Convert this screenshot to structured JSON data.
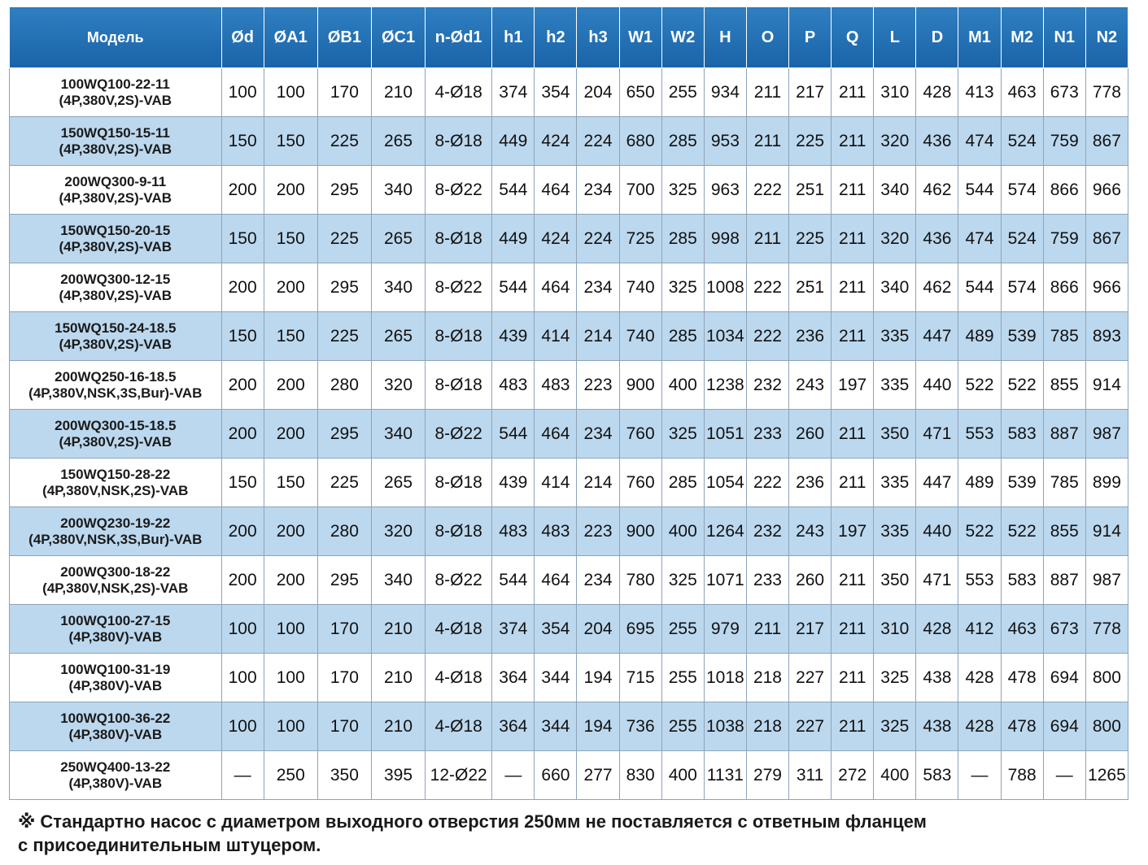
{
  "table": {
    "headers": [
      "Модель",
      "Ød",
      "ØA1",
      "ØB1",
      "ØC1",
      "n-Ød1",
      "h1",
      "h2",
      "h3",
      "W1",
      "W2",
      "H",
      "O",
      "P",
      "Q",
      "L",
      "D",
      "M1",
      "M2",
      "N1",
      "N2"
    ],
    "rows": [
      {
        "model": [
          "100WQ100-22-11",
          "(4P,380V,2S)-VAB"
        ],
        "values": [
          "100",
          "100",
          "170",
          "210",
          "4-Ø18",
          "374",
          "354",
          "204",
          "650",
          "255",
          "934",
          "211",
          "217",
          "211",
          "310",
          "428",
          "413",
          "463",
          "673",
          "778"
        ]
      },
      {
        "model": [
          "150WQ150-15-11",
          "(4P,380V,2S)-VAB"
        ],
        "values": [
          "150",
          "150",
          "225",
          "265",
          "8-Ø18",
          "449",
          "424",
          "224",
          "680",
          "285",
          "953",
          "211",
          "225",
          "211",
          "320",
          "436",
          "474",
          "524",
          "759",
          "867"
        ]
      },
      {
        "model": [
          "200WQ300-9-11",
          "(4P,380V,2S)-VAB"
        ],
        "values": [
          "200",
          "200",
          "295",
          "340",
          "8-Ø22",
          "544",
          "464",
          "234",
          "700",
          "325",
          "963",
          "222",
          "251",
          "211",
          "340",
          "462",
          "544",
          "574",
          "866",
          "966"
        ]
      },
      {
        "model": [
          "150WQ150-20-15",
          "(4P,380V,2S)-VAB"
        ],
        "values": [
          "150",
          "150",
          "225",
          "265",
          "8-Ø18",
          "449",
          "424",
          "224",
          "725",
          "285",
          "998",
          "211",
          "225",
          "211",
          "320",
          "436",
          "474",
          "524",
          "759",
          "867"
        ]
      },
      {
        "model": [
          "200WQ300-12-15",
          "(4P,380V,2S)-VAB"
        ],
        "values": [
          "200",
          "200",
          "295",
          "340",
          "8-Ø22",
          "544",
          "464",
          "234",
          "740",
          "325",
          "1008",
          "222",
          "251",
          "211",
          "340",
          "462",
          "544",
          "574",
          "866",
          "966"
        ]
      },
      {
        "model": [
          "150WQ150-24-18.5",
          "(4P,380V,2S)-VAB"
        ],
        "values": [
          "150",
          "150",
          "225",
          "265",
          "8-Ø18",
          "439",
          "414",
          "214",
          "740",
          "285",
          "1034",
          "222",
          "236",
          "211",
          "335",
          "447",
          "489",
          "539",
          "785",
          "893"
        ]
      },
      {
        "model": [
          "200WQ250-16-18.5",
          "(4P,380V,NSK,3S,Bur)-VAB"
        ],
        "values": [
          "200",
          "200",
          "280",
          "320",
          "8-Ø18",
          "483",
          "483",
          "223",
          "900",
          "400",
          "1238",
          "232",
          "243",
          "197",
          "335",
          "440",
          "522",
          "522",
          "855",
          "914"
        ]
      },
      {
        "model": [
          "200WQ300-15-18.5",
          "(4P,380V,2S)-VAB"
        ],
        "values": [
          "200",
          "200",
          "295",
          "340",
          "8-Ø22",
          "544",
          "464",
          "234",
          "760",
          "325",
          "1051",
          "233",
          "260",
          "211",
          "350",
          "471",
          "553",
          "583",
          "887",
          "987"
        ]
      },
      {
        "model": [
          "150WQ150-28-22",
          "(4P,380V,NSK,2S)-VAB"
        ],
        "values": [
          "150",
          "150",
          "225",
          "265",
          "8-Ø18",
          "439",
          "414",
          "214",
          "760",
          "285",
          "1054",
          "222",
          "236",
          "211",
          "335",
          "447",
          "489",
          "539",
          "785",
          "899"
        ]
      },
      {
        "model": [
          "200WQ230-19-22",
          "(4P,380V,NSK,3S,Bur)-VAB"
        ],
        "values": [
          "200",
          "200",
          "280",
          "320",
          "8-Ø18",
          "483",
          "483",
          "223",
          "900",
          "400",
          "1264",
          "232",
          "243",
          "197",
          "335",
          "440",
          "522",
          "522",
          "855",
          "914"
        ]
      },
      {
        "model": [
          "200WQ300-18-22",
          "(4P,380V,NSK,2S)-VAB"
        ],
        "values": [
          "200",
          "200",
          "295",
          "340",
          "8-Ø22",
          "544",
          "464",
          "234",
          "780",
          "325",
          "1071",
          "233",
          "260",
          "211",
          "350",
          "471",
          "553",
          "583",
          "887",
          "987"
        ]
      },
      {
        "model": [
          "100WQ100-27-15",
          "(4P,380V)-VAB"
        ],
        "values": [
          "100",
          "100",
          "170",
          "210",
          "4-Ø18",
          "374",
          "354",
          "204",
          "695",
          "255",
          "979",
          "211",
          "217",
          "211",
          "310",
          "428",
          "412",
          "463",
          "673",
          "778"
        ]
      },
      {
        "model": [
          "100WQ100-31-19",
          "(4P,380V)-VAB"
        ],
        "values": [
          "100",
          "100",
          "170",
          "210",
          "4-Ø18",
          "364",
          "344",
          "194",
          "715",
          "255",
          "1018",
          "218",
          "227",
          "211",
          "325",
          "438",
          "428",
          "478",
          "694",
          "800"
        ]
      },
      {
        "model": [
          "100WQ100-36-22",
          "(4P,380V)-VAB"
        ],
        "values": [
          "100",
          "100",
          "170",
          "210",
          "4-Ø18",
          "364",
          "344",
          "194",
          "736",
          "255",
          "1038",
          "218",
          "227",
          "211",
          "325",
          "438",
          "428",
          "478",
          "694",
          "800"
        ]
      },
      {
        "model": [
          "250WQ400-13-22",
          "(4P,380V)-VAB"
        ],
        "values": [
          "—",
          "250",
          "350",
          "395",
          "12-Ø22",
          "—",
          "660",
          "277",
          "830",
          "400",
          "1131",
          "279",
          "311",
          "272",
          "400",
          "583",
          "—",
          "788",
          "—",
          "1265"
        ]
      }
    ]
  },
  "footnote": {
    "mark": "※",
    "line1": "Стандартно насос с диаметром выходного отверстия 250мм не поставляется с ответным фланцем",
    "line2": "с присоединительным штуцером."
  },
  "colors": {
    "header_bg": "#1a63a8",
    "row_alt_bg": "#bcd8ee",
    "border": "#8ea3b8"
  }
}
